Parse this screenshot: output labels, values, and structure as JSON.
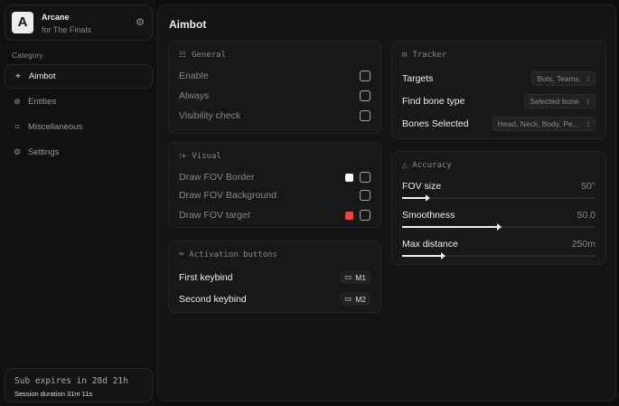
{
  "app": {
    "name": "Arcane",
    "subtitle": "for The Finals",
    "logo_letter": "A"
  },
  "sidebar": {
    "category_label": "Category",
    "items": [
      {
        "label": "Aimbot",
        "icon": "crosshair-icon",
        "active": true
      },
      {
        "label": "Entities",
        "icon": "entities-icon",
        "active": false
      },
      {
        "label": "Miscellaneous",
        "icon": "misc-icon",
        "active": false
      },
      {
        "label": "Settings",
        "icon": "gear-icon",
        "active": false
      }
    ]
  },
  "subscription": {
    "expires": "Sub expires in 28d 21h",
    "session": "Session duration 31m 11s"
  },
  "main": {
    "title": "Aimbot"
  },
  "general": {
    "title": "General",
    "rows": [
      {
        "label": "Enable",
        "checked": false
      },
      {
        "label": "Always",
        "checked": false
      },
      {
        "label": "Visibility check",
        "checked": false
      }
    ]
  },
  "visual": {
    "title": "Visual",
    "rows": [
      {
        "label": "Draw FOV Border",
        "color": "#ffffff",
        "checked": false
      },
      {
        "label": "Draw FOV Background",
        "checked": false
      },
      {
        "label": "Draw FOV target",
        "color": "#ef4444",
        "checked": false
      }
    ]
  },
  "activation": {
    "title": "Activation buttons",
    "rows": [
      {
        "label": "First keybind",
        "key": "M1"
      },
      {
        "label": "Second keybind",
        "key": "M2"
      }
    ]
  },
  "tracker": {
    "title": "Tracker",
    "rows": [
      {
        "label": "Targets",
        "value": "Bots, Teams"
      },
      {
        "label": "Find bone type",
        "value": "Selected bone"
      },
      {
        "label": "Bones Selected",
        "value": "Head, Neck, Body, Pe..."
      }
    ]
  },
  "accuracy": {
    "title": "Accuracy",
    "sliders": [
      {
        "label": "FOV size",
        "value": "50°",
        "fraction": 0.13
      },
      {
        "label": "Smoothness",
        "value": "50.0",
        "fraction": 0.5
      },
      {
        "label": "Max distance",
        "value": "250m",
        "fraction": 0.21
      }
    ]
  }
}
